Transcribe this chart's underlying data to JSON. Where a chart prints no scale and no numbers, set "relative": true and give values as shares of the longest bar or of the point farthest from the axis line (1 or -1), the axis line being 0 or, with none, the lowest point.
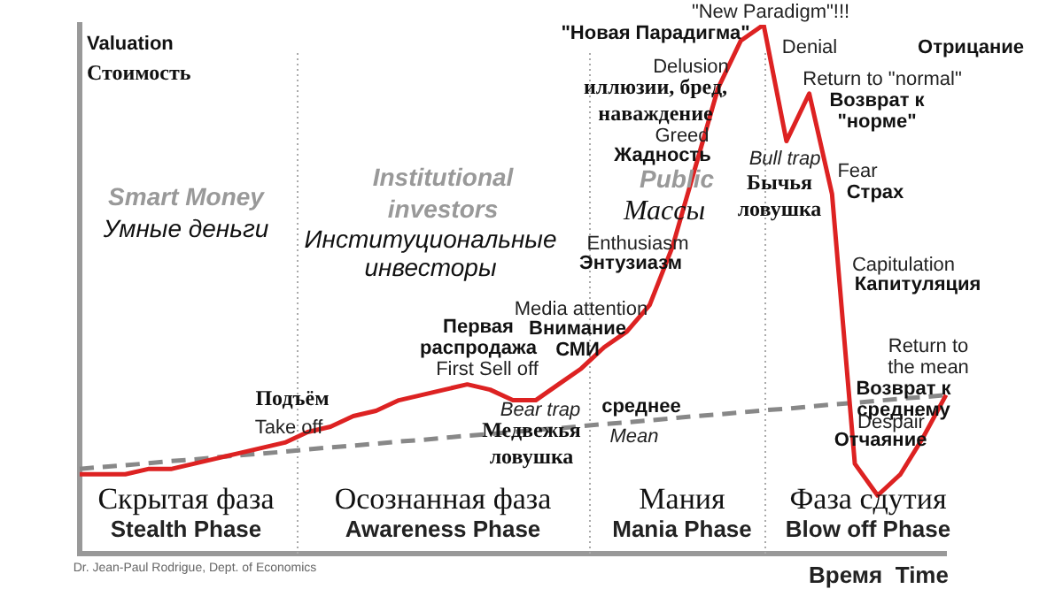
{
  "chart_data": {
    "type": "line",
    "ylabel": "Valuation\nСтоимость",
    "xlabel": "Время  Time",
    "relative": true,
    "legend": false,
    "categories": [
      null,
      null,
      null,
      null,
      null,
      null,
      null,
      null,
      null,
      null,
      null,
      null,
      null,
      null,
      null,
      null,
      null,
      null,
      null,
      null,
      null,
      null,
      null,
      null,
      null,
      null,
      null,
      null,
      null,
      null,
      null,
      null,
      null,
      null,
      null,
      null,
      null,
      null,
      null
    ],
    "series": [
      {
        "color": "#dd2222",
        "values": [
          0.15,
          0.15,
          0.15,
          0.16,
          0.16,
          0.17,
          0.18,
          0.19,
          0.2,
          0.21,
          0.23,
          0.24,
          0.26,
          0.27,
          0.29,
          0.3,
          0.31,
          0.32,
          0.31,
          0.29,
          0.29,
          0.32,
          0.35,
          0.39,
          0.42,
          0.47,
          0.58,
          0.73,
          0.88,
          0.97,
          1,
          0.78,
          0.87,
          0.68,
          0.17,
          0.11,
          0.15,
          0.22,
          0.3
        ]
      },
      {
        "color": "#888888",
        "line_style": "dashed",
        "values": [
          0.16,
          0.164,
          0.167,
          0.171,
          0.175,
          0.178,
          0.182,
          0.186,
          0.189,
          0.193,
          0.197,
          0.201,
          0.204,
          0.208,
          0.212,
          0.215,
          0.219,
          0.223,
          0.226,
          0.23,
          0.234,
          0.237,
          0.241,
          0.245,
          0.248,
          0.252,
          0.256,
          0.26,
          0.263,
          0.267,
          0.271,
          0.274,
          0.278,
          0.282,
          0.285,
          0.289,
          0.293,
          0.296,
          0.3
        ]
      }
    ],
    "annotations": [
      "Подъём",
      "Take off",
      "Первая\nраспродажа",
      "First Sell off",
      "Bear trap",
      "Медвежья\nловушка",
      "Media attention",
      "Внимание\nСМИ",
      "среднее",
      "Mean",
      "Enthusiasm",
      "Энтузиазм",
      "Greed",
      "Жадность",
      "Delusion",
      "иллюзии, бред,\nнаваждение",
      "\"New Paradigm\"!!!",
      "\"Новая Парадигма\"",
      "Denial",
      "Отрицание",
      "Return to \"normal\"",
      "Возврат к\n\"норме\"",
      "Bull trap",
      "Бычья\nловушка",
      "Fear",
      "Страх",
      "Capitulation",
      "Капитуляция",
      "Return to\nthe mean",
      "Возврат к\nсреднему",
      "Despair",
      "Отчаяние",
      "Smart Money",
      "Умные деньги",
      "Institutional\ninvestors",
      "Институциональные\nинвесторы",
      "Public",
      "Массы",
      "Dr. Jean-Paul Rodrigue, Dept. of Economics",
      "Скрытая фаза\nStealth Phase",
      "Осознанная фаза\nAwareness Phase",
      "Мания\nMania Phase",
      "Фаза сдутия\nBlow off Phase"
    ]
  }
}
